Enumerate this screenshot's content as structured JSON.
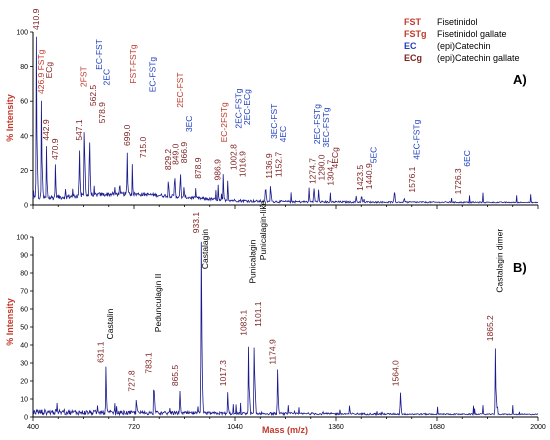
{
  "colors": {
    "spectrum": "#1a1a8c",
    "red": "#c0392b",
    "darkred": "#7b1f1f",
    "blue": "#1f3fbf",
    "black": "#000000",
    "axis_title": "#c0392b"
  },
  "legend": [
    {
      "abbr": "FST",
      "full": "Fisetinidol",
      "color": "red"
    },
    {
      "abbr": "FSTg",
      "full": "Fisetinidol gallate",
      "color": "red"
    },
    {
      "abbr": "EC",
      "full": "(epi)Catechin",
      "color": "blue"
    },
    {
      "abbr": "ECg",
      "full": "(epi)Catechin gallate",
      "color": "darkred"
    }
  ],
  "chart_data": [
    {
      "type": "line",
      "panel": "A)",
      "xlabel": "",
      "ylabel": "% Intensity",
      "xlim": [
        400,
        2000
      ],
      "ylim": [
        0,
        100
      ],
      "y_ticks": [
        "0",
        "20",
        "40",
        "60",
        "80",
        "100"
      ],
      "peaks": [
        {
          "mz": 410.9,
          "y": 100
        },
        {
          "mz": 426.9,
          "y": 62
        },
        {
          "mz": 442.9,
          "y": 35
        },
        {
          "mz": 470.9,
          "y": 24
        },
        {
          "mz": 547.1,
          "y": 35
        },
        {
          "mz": 562.5,
          "y": 55
        },
        {
          "mz": 578.9,
          "y": 45
        },
        {
          "mz": 699.0,
          "y": 32
        },
        {
          "mz": 715.0,
          "y": 25
        },
        {
          "mz": 829.2,
          "y": 18
        },
        {
          "mz": 849.0,
          "y": 21
        },
        {
          "mz": 866.9,
          "y": 22
        },
        {
          "mz": 878.9,
          "y": 13
        },
        {
          "mz": 986.9,
          "y": 12
        },
        {
          "mz": 1002.8,
          "y": 18
        },
        {
          "mz": 1016.9,
          "y": 14
        },
        {
          "mz": 1136.9,
          "y": 13
        },
        {
          "mz": 1152.7,
          "y": 14
        },
        {
          "mz": 1274.7,
          "y": 10
        },
        {
          "mz": 1290.0,
          "y": 12
        },
        {
          "mz": 1304.7,
          "y": 9
        },
        {
          "mz": 1423.5,
          "y": 6
        },
        {
          "mz": 1440.9,
          "y": 7
        },
        {
          "mz": 1576.1,
          "y": 5
        },
        {
          "mz": 1726.3,
          "y": 4
        }
      ],
      "annotations": [
        {
          "text": "410.9",
          "mz": 410.9,
          "y": 100,
          "color": "darkred"
        },
        {
          "text": "426.9 FSTg",
          "mz": 426.9,
          "y": 63,
          "color": "red"
        },
        {
          "text": "442.9",
          "mz": 442.9,
          "y": 36,
          "color": "darkred"
        },
        {
          "text": "ECg",
          "mz": 453,
          "y": 72,
          "color": "darkred"
        },
        {
          "text": "470.9",
          "mz": 470.9,
          "y": 25,
          "color": "darkred"
        },
        {
          "text": "547.1",
          "mz": 547.1,
          "y": 36,
          "color": "darkred"
        },
        {
          "text": "2FST",
          "mz": 562,
          "y": 67,
          "color": "red"
        },
        {
          "text": "562.5",
          "mz": 591,
          "y": 56,
          "color": "darkred"
        },
        {
          "text": "EC-FST",
          "mz": 610,
          "y": 77,
          "color": "blue"
        },
        {
          "text": "578.9",
          "mz": 620,
          "y": 46,
          "color": "darkred"
        },
        {
          "text": "2EC",
          "mz": 634,
          "y": 68,
          "color": "blue"
        },
        {
          "text": "699.0",
          "mz": 699.0,
          "y": 33,
          "color": "darkred"
        },
        {
          "text": "FST-FSTg",
          "mz": 719,
          "y": 69,
          "color": "red"
        },
        {
          "text": "715.0",
          "mz": 750,
          "y": 26,
          "color": "darkred"
        },
        {
          "text": "EC-FSTg",
          "mz": 780,
          "y": 64,
          "color": "blue"
        },
        {
          "text": "829.2",
          "mz": 829.2,
          "y": 19,
          "color": "darkred"
        },
        {
          "text": "849.0",
          "mz": 853,
          "y": 22,
          "color": "darkred"
        },
        {
          "text": "2EC-FST",
          "mz": 868,
          "y": 55,
          "color": "red"
        },
        {
          "text": "866.9",
          "mz": 880,
          "y": 23,
          "color": "darkred"
        },
        {
          "text": "3EC",
          "mz": 896,
          "y": 41,
          "color": "blue"
        },
        {
          "text": "878.9",
          "mz": 925,
          "y": 14,
          "color": "darkred"
        },
        {
          "text": "986.9",
          "mz": 986.9,
          "y": 13,
          "color": "darkred"
        },
        {
          "text": "EC-2FSTg",
          "mz": 1007,
          "y": 35,
          "color": "red"
        },
        {
          "text": "1002.8",
          "mz": 1037,
          "y": 19,
          "color": "darkred"
        },
        {
          "text": "2EC-FSTg",
          "mz": 1052,
          "y": 43,
          "color": "blue"
        },
        {
          "text": "1016.9",
          "mz": 1066,
          "y": 15,
          "color": "darkred"
        },
        {
          "text": "2EC-ECg",
          "mz": 1080,
          "y": 45,
          "color": "blue"
        },
        {
          "text": "1136.9",
          "mz": 1150,
          "y": 14,
          "color": "darkred"
        },
        {
          "text": "3EC-FST",
          "mz": 1165,
          "y": 37,
          "color": "blue"
        },
        {
          "text": "1152.7",
          "mz": 1179,
          "y": 15,
          "color": "darkred"
        },
        {
          "text": "4EC",
          "mz": 1194,
          "y": 35,
          "color": "blue"
        },
        {
          "text": "1274.7",
          "mz": 1287,
          "y": 11,
          "color": "darkred"
        },
        {
          "text": "2EC-FSTg",
          "mz": 1301,
          "y": 34,
          "color": "blue"
        },
        {
          "text": "1290.0",
          "mz": 1316,
          "y": 13,
          "color": "darkred"
        },
        {
          "text": "3EC-FSTg",
          "mz": 1330,
          "y": 32,
          "color": "blue"
        },
        {
          "text": "1304.7",
          "mz": 1344,
          "y": 10,
          "color": "darkred"
        },
        {
          "text": "4ECg",
          "mz": 1358,
          "y": 20,
          "color": "darkred"
        },
        {
          "text": "1423.5",
          "mz": 1437,
          "y": 7,
          "color": "darkred"
        },
        {
          "text": "1440.9",
          "mz": 1466,
          "y": 8,
          "color": "darkred"
        },
        {
          "text": "5EC",
          "mz": 1480,
          "y": 23,
          "color": "blue"
        },
        {
          "text": "1576.1",
          "mz": 1603,
          "y": 6,
          "color": "darkred"
        },
        {
          "text": "4EC-FSTg",
          "mz": 1617,
          "y": 25,
          "color": "blue"
        },
        {
          "text": "1726.3",
          "mz": 1748,
          "y": 5,
          "color": "darkred"
        },
        {
          "text": "6EC",
          "mz": 1777,
          "y": 21,
          "color": "blue"
        }
      ]
    },
    {
      "type": "line",
      "panel": "B)",
      "xlabel": "Mass (m/z)",
      "ylabel": "% Intensity",
      "xlim": [
        400,
        2000
      ],
      "ylim": [
        0,
        100
      ],
      "y_ticks": [
        "0",
        "10",
        "20",
        "30",
        "40",
        "50",
        "60",
        "70",
        "80",
        "90",
        "100"
      ],
      "x_ticks": [
        "400",
        "720",
        "1040",
        "1360",
        "1680",
        "2000"
      ],
      "peaks": [
        {
          "mz": 631.1,
          "y": 28
        },
        {
          "mz": 727.8,
          "y": 12
        },
        {
          "mz": 783.1,
          "y": 22
        },
        {
          "mz": 865.5,
          "y": 15
        },
        {
          "mz": 933.1,
          "y": 100
        },
        {
          "mz": 1017.3,
          "y": 15
        },
        {
          "mz": 1083.1,
          "y": 43
        },
        {
          "mz": 1101.1,
          "y": 48
        },
        {
          "mz": 1174.9,
          "y": 27
        },
        {
          "mz": 1564.0,
          "y": 15
        },
        {
          "mz": 1865.2,
          "y": 40
        }
      ],
      "annotations": [
        {
          "text": "631.1",
          "mz": 616,
          "y": 29,
          "color": "darkred"
        },
        {
          "text": "Castalin",
          "mz": 645,
          "y": 42,
          "color": "black"
        },
        {
          "text": "727.8",
          "mz": 713,
          "y": 13,
          "color": "darkred"
        },
        {
          "text": "783.1",
          "mz": 768,
          "y": 23,
          "color": "darkred"
        },
        {
          "text": "Pedunculagin II",
          "mz": 797,
          "y": 46,
          "color": "black"
        },
        {
          "text": "865.5",
          "mz": 851,
          "y": 16,
          "color": "darkred"
        },
        {
          "text": "933.1",
          "mz": 918,
          "y": 101,
          "color": "darkred"
        },
        {
          "text": "Castalagin",
          "mz": 947,
          "y": 81,
          "color": "black"
        },
        {
          "text": "1017.3",
          "mz": 1003,
          "y": 16,
          "color": "darkred"
        },
        {
          "text": "1083.1",
          "mz": 1068,
          "y": 44,
          "color": "darkred"
        },
        {
          "text": "Punicalagin",
          "mz": 1097,
          "y": 73,
          "color": "black"
        },
        {
          "text": "1101.1",
          "mz": 1115,
          "y": 49,
          "color": "darkred"
        },
        {
          "text": "Punicalagin-like",
          "mz": 1130,
          "y": 86,
          "color": "black"
        },
        {
          "text": "1174.9",
          "mz": 1160,
          "y": 28,
          "color": "darkred"
        },
        {
          "text": "1564.0",
          "mz": 1550,
          "y": 16,
          "color": "darkred"
        },
        {
          "text": "1865.2",
          "mz": 1850,
          "y": 41,
          "color": "darkred"
        },
        {
          "text": "Castalagin dimer",
          "mz": 1879,
          "y": 68,
          "color": "black"
        }
      ]
    }
  ]
}
